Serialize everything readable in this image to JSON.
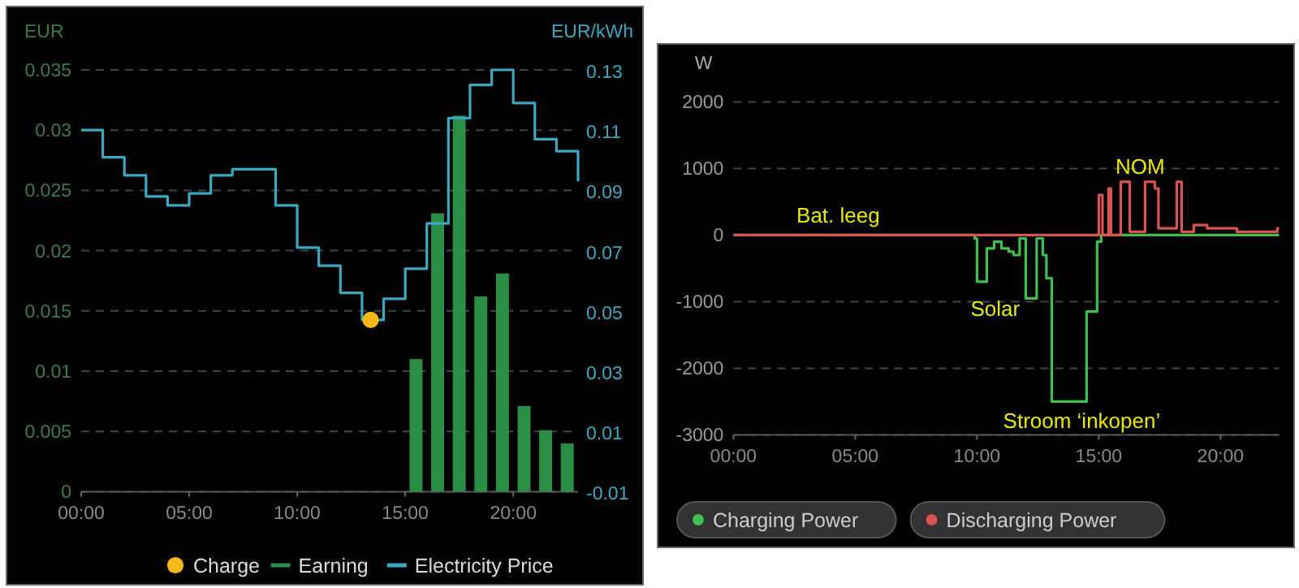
{
  "chart_data": [
    {
      "type": "bar",
      "ylabel": "EUR",
      "y2label": "EUR/kWh",
      "xlim": [
        0,
        23
      ],
      "xticks": [
        {
          "value": 0,
          "label": "00:00"
        },
        {
          "value": 5,
          "label": "05:00"
        },
        {
          "value": 10,
          "label": "10:00"
        },
        {
          "value": 15,
          "label": "15:00"
        },
        {
          "value": 20,
          "label": "20:00"
        }
      ],
      "ylim": [
        0,
        0.035
      ],
      "yticks": [
        0,
        0.005,
        0.01,
        0.015,
        0.02,
        0.025,
        0.03,
        0.035
      ],
      "y2lim": [
        -0.01,
        0.13
      ],
      "y2ticks": [
        -0.01,
        0.01,
        0.03,
        0.05,
        0.07,
        0.09,
        0.11,
        0.13
      ],
      "grid": "y",
      "legend": "bottom right",
      "series": [
        {
          "name": "Charge",
          "type": "scatter",
          "axis": "y2",
          "color": "#f5b816",
          "marker": "circle",
          "x": [
            13.4
          ],
          "values": [
            0.047
          ]
        },
        {
          "name": "Earning",
          "color": "#2a8f45",
          "x": [
            15.5,
            16.5,
            17.5,
            18.5,
            19.5,
            20.5,
            21.5,
            22.5
          ],
          "values": [
            0.011,
            0.0231,
            0.0312,
            0.0162,
            0.0181,
            0.0071,
            0.0051,
            0.004
          ]
        },
        {
          "name": "Electricity Price",
          "type": "step",
          "axis": "y2",
          "color": "#3aa8c1",
          "x": [
            0,
            1,
            2,
            3,
            4,
            5,
            6,
            7,
            8,
            9,
            10,
            11,
            12,
            13,
            14,
            15,
            16,
            17,
            18,
            19,
            20,
            21,
            22,
            23
          ],
          "values": [
            0.11,
            0.101,
            0.095,
            0.088,
            0.085,
            0.089,
            0.095,
            0.097,
            0.097,
            0.085,
            0.071,
            0.065,
            0.056,
            0.047,
            0.054,
            0.064,
            0.079,
            0.114,
            0.125,
            0.13,
            0.119,
            0.107,
            0.103,
            0.093
          ]
        }
      ]
    },
    {
      "type": "step",
      "ylabel": "W",
      "xlim": [
        0,
        22.4
      ],
      "xticks": [
        {
          "value": 0,
          "label": "00:00"
        },
        {
          "value": 5,
          "label": "05:00"
        },
        {
          "value": 10,
          "label": "10:00"
        },
        {
          "value": 15,
          "label": "15:00"
        },
        {
          "value": 20,
          "label": "20:00"
        }
      ],
      "ylim": [
        -3000,
        2000
      ],
      "yticks": [
        2000,
        1000,
        0,
        -1000,
        -2000,
        -3000
      ],
      "grid": "y",
      "legend": "bottom left",
      "annotations": [
        "Bat. leeg",
        "NOM",
        "Solar",
        "Stroom ‘inkopen’"
      ],
      "series": [
        {
          "name": "Charging Power",
          "color": "#3fbf4f",
          "x": [
            0,
            9.9,
            10.0,
            10.4,
            10.7,
            11.0,
            11.3,
            11.5,
            11.75,
            12.0,
            12.1,
            12.45,
            12.7,
            12.85,
            13.07,
            14.5,
            14.93,
            15.1,
            22.4
          ],
          "values": [
            0,
            -50,
            -700,
            -200,
            -100,
            -200,
            -250,
            -300,
            -50,
            -950,
            -950,
            -50,
            -300,
            -650,
            -2500,
            -1150,
            -100,
            0,
            0
          ]
        },
        {
          "name": "Discharging Power",
          "color": "#d9534f",
          "x": [
            0,
            15.0,
            15.15,
            15.4,
            15.5,
            15.9,
            16.27,
            16.9,
            17.3,
            17.45,
            18.2,
            18.4,
            18.9,
            19.45,
            20.67,
            22.33,
            22.4
          ],
          "values": [
            0,
            600,
            0,
            700,
            0,
            800,
            50,
            800,
            700,
            100,
            800,
            50,
            150,
            100,
            50,
            100,
            100
          ]
        }
      ]
    }
  ]
}
